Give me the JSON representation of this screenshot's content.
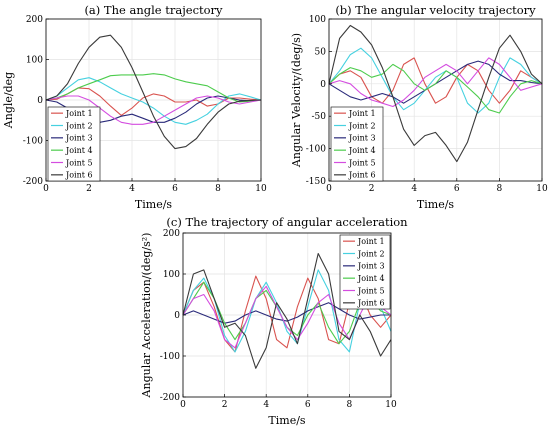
{
  "chart_data": [
    {
      "type": "line",
      "title": "(a) The angle trajectory",
      "xlabel": "Time/s",
      "ylabel": "Angle/deg",
      "xlim": [
        0,
        10
      ],
      "ylim": [
        -200,
        200
      ],
      "xticks": [
        "0",
        "2",
        "4",
        "6",
        "8",
        "10"
      ],
      "yticks": [
        "200",
        "100",
        "0",
        "-100",
        "-200"
      ],
      "grid": true,
      "legend": "bottom-left",
      "x": [
        0,
        0.5,
        1,
        1.5,
        2,
        2.5,
        3,
        3.5,
        4,
        4.5,
        5,
        5.5,
        6,
        6.5,
        7,
        7.5,
        8,
        8.5,
        9,
        9.5,
        10
      ],
      "series": [
        {
          "name": "Joint 1",
          "color": "#d9534f",
          "values": [
            0,
            2,
            15,
            30,
            28,
            10,
            -15,
            -38,
            -20,
            5,
            15,
            10,
            -5,
            -5,
            0,
            -15,
            -10,
            5,
            5,
            2,
            0
          ]
        },
        {
          "name": "Joint 2",
          "color": "#46d1e0",
          "values": [
            0,
            10,
            30,
            50,
            55,
            45,
            30,
            15,
            5,
            -5,
            -20,
            -40,
            -55,
            -60,
            -50,
            -35,
            -10,
            10,
            15,
            8,
            0
          ]
        },
        {
          "name": "Joint 3",
          "color": "#2a2a7a",
          "values": [
            0,
            -5,
            -20,
            -40,
            -50,
            -55,
            -50,
            -40,
            -35,
            -45,
            -55,
            -55,
            -45,
            -30,
            -10,
            5,
            10,
            5,
            0,
            -2,
            0
          ]
        },
        {
          "name": "Joint 4",
          "color": "#4dcc4d",
          "values": [
            0,
            5,
            15,
            30,
            40,
            50,
            60,
            62,
            62,
            62,
            65,
            62,
            52,
            45,
            40,
            35,
            20,
            5,
            -5,
            -3,
            0
          ]
        },
        {
          "name": "Joint 5",
          "color": "#d44de0",
          "values": [
            0,
            5,
            10,
            10,
            0,
            -20,
            -40,
            -55,
            -60,
            -60,
            -55,
            -40,
            -25,
            -10,
            5,
            10,
            5,
            -5,
            -10,
            -5,
            0
          ]
        },
        {
          "name": "Joint 6",
          "color": "#3a3a3a",
          "values": [
            0,
            10,
            40,
            90,
            130,
            155,
            160,
            130,
            80,
            20,
            -40,
            -90,
            -120,
            -115,
            -95,
            -60,
            -30,
            -10,
            -3,
            -1,
            0
          ]
        }
      ]
    },
    {
      "type": "line",
      "title": "(b) The angular velocity trajectory",
      "xlabel": "Time/s",
      "ylabel": "Angular Velocity/(deg/s)",
      "xlim": [
        0,
        10
      ],
      "ylim": [
        -150,
        100
      ],
      "xticks": [
        "0",
        "2",
        "4",
        "6",
        "8",
        "10"
      ],
      "yticks": [
        "100",
        "50",
        "0",
        "-50",
        "-100",
        "-150"
      ],
      "grid": true,
      "legend": "bottom-left",
      "x": [
        0,
        0.5,
        1,
        1.5,
        2,
        2.5,
        3,
        3.5,
        4,
        4.5,
        5,
        5.5,
        6,
        6.5,
        7,
        7.5,
        8,
        8.5,
        9,
        9.5,
        10
      ],
      "series": [
        {
          "name": "Joint 1",
          "color": "#d9534f",
          "values": [
            0,
            15,
            20,
            10,
            -20,
            -30,
            -10,
            30,
            40,
            0,
            -30,
            -20,
            10,
            30,
            20,
            -10,
            -30,
            -10,
            20,
            10,
            0
          ]
        },
        {
          "name": "Joint 2",
          "color": "#46d1e0",
          "values": [
            0,
            20,
            45,
            55,
            40,
            10,
            -20,
            -40,
            -30,
            -10,
            10,
            20,
            10,
            -30,
            -45,
            -30,
            10,
            40,
            30,
            10,
            0
          ]
        },
        {
          "name": "Joint 3",
          "color": "#2a2a7a",
          "values": [
            0,
            -10,
            -20,
            -25,
            -20,
            -15,
            -20,
            -30,
            -20,
            -10,
            0,
            10,
            20,
            30,
            35,
            30,
            15,
            5,
            5,
            2,
            0
          ]
        },
        {
          "name": "Joint 4",
          "color": "#4dcc4d",
          "values": [
            0,
            15,
            25,
            20,
            10,
            15,
            30,
            20,
            0,
            -10,
            0,
            20,
            10,
            -5,
            -20,
            -40,
            -45,
            -20,
            0,
            5,
            0
          ]
        },
        {
          "name": "Joint 5",
          "color": "#d44de0",
          "values": [
            0,
            5,
            0,
            -15,
            -25,
            -30,
            -35,
            -25,
            -10,
            10,
            20,
            30,
            20,
            0,
            20,
            40,
            30,
            10,
            -10,
            -5,
            0
          ]
        },
        {
          "name": "Joint 6",
          "color": "#3a3a3a",
          "values": [
            0,
            70,
            90,
            80,
            60,
            25,
            -20,
            -70,
            -95,
            -80,
            -75,
            -95,
            -120,
            -90,
            -40,
            10,
            55,
            75,
            50,
            15,
            0
          ]
        }
      ]
    },
    {
      "type": "line",
      "title": "(c) The trajectory of angular acceleration",
      "xlabel": "Time/s",
      "ylabel": "Angular Acceleration/(deg/s²)",
      "xlim": [
        0,
        10
      ],
      "ylim": [
        -200,
        200
      ],
      "xticks": [
        "0",
        "2",
        "4",
        "6",
        "8",
        "10"
      ],
      "yticks": [
        "200",
        "100",
        "0",
        "-100",
        "-200"
      ],
      "grid": true,
      "legend": "top-right",
      "x": [
        0,
        0.5,
        1,
        1.5,
        2,
        2.5,
        3,
        3.5,
        4,
        4.5,
        5,
        5.5,
        6,
        6.5,
        7,
        7.5,
        8,
        8.5,
        9,
        9.5,
        10
      ],
      "series": [
        {
          "name": "Joint 1",
          "color": "#d9534f",
          "values": [
            0,
            60,
            80,
            20,
            -60,
            -90,
            10,
            95,
            40,
            -60,
            -80,
            20,
            90,
            40,
            -60,
            -70,
            30,
            60,
            0,
            -30,
            0
          ]
        },
        {
          "name": "Joint 2",
          "color": "#46d1e0",
          "values": [
            0,
            60,
            90,
            40,
            -50,
            -90,
            -40,
            40,
            80,
            30,
            -40,
            -70,
            20,
            110,
            60,
            -60,
            -90,
            30,
            70,
            20,
            -40
          ]
        },
        {
          "name": "Joint 3",
          "color": "#2a2a7a",
          "values": [
            0,
            10,
            0,
            -10,
            -20,
            -15,
            0,
            10,
            0,
            -10,
            -15,
            -5,
            10,
            20,
            30,
            15,
            0,
            -10,
            -5,
            0,
            0
          ]
        },
        {
          "name": "Joint 4",
          "color": "#4dcc4d",
          "values": [
            0,
            40,
            80,
            40,
            -20,
            -60,
            -20,
            40,
            60,
            20,
            -30,
            -50,
            0,
            30,
            -30,
            -70,
            -40,
            30,
            40,
            10,
            0
          ]
        },
        {
          "name": "Joint 5",
          "color": "#d44de0",
          "values": [
            0,
            40,
            50,
            10,
            -60,
            -80,
            -20,
            40,
            70,
            20,
            -30,
            -60,
            -20,
            30,
            50,
            -20,
            -60,
            0,
            50,
            20,
            0
          ]
        },
        {
          "name": "Joint 6",
          "color": "#3a3a3a",
          "values": [
            0,
            100,
            110,
            40,
            -30,
            -20,
            -50,
            -130,
            -80,
            30,
            -10,
            -70,
            40,
            150,
            100,
            -40,
            -60,
            0,
            -40,
            -100,
            -60
          ]
        }
      ]
    }
  ]
}
